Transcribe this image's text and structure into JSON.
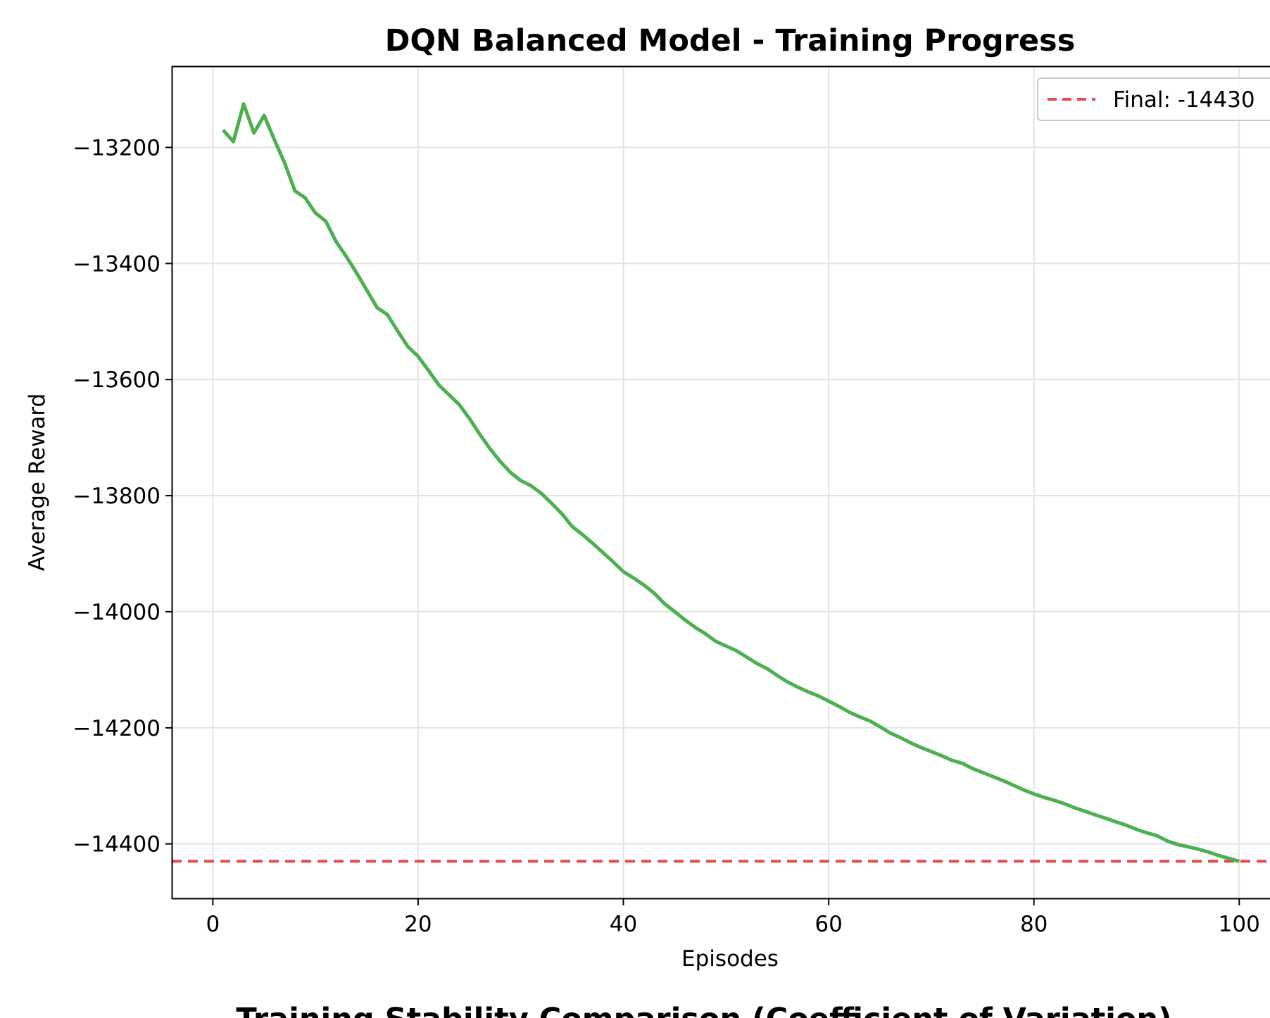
{
  "chart_data": {
    "type": "line",
    "title": "DQN Balanced Model - Training Progress",
    "xlabel": "Episodes",
    "ylabel": "Average Reward",
    "xlim": [
      -4,
      103
    ],
    "ylim": [
      -14495,
      -13060
    ],
    "xticks": [
      0,
      20,
      40,
      60,
      80,
      100
    ],
    "yticks": [
      -13200,
      -13400,
      -13600,
      -13800,
      -14000,
      -14200,
      -14400
    ],
    "grid": true,
    "legend": {
      "placement": "top-right",
      "entries": [
        "Final: -14430"
      ]
    },
    "series": [
      {
        "color": "#4caf50",
        "x": [
          1,
          2,
          3,
          4,
          5,
          6,
          7,
          8,
          9,
          10,
          11,
          12,
          13,
          14,
          15,
          16,
          17,
          18,
          19,
          20,
          21,
          22,
          23,
          24,
          25,
          26,
          27,
          28,
          29,
          30,
          31,
          32,
          33,
          34,
          35,
          36,
          37,
          38,
          39,
          40,
          41,
          42,
          43,
          44,
          45,
          46,
          47,
          48,
          49,
          50,
          51,
          52,
          53,
          54,
          55,
          56,
          57,
          58,
          59,
          60,
          61,
          62,
          63,
          64,
          65,
          66,
          67,
          68,
          69,
          70,
          71,
          72,
          73,
          74,
          75,
          76,
          77,
          78,
          79,
          80,
          81,
          82,
          83,
          84,
          85,
          86,
          87,
          88,
          89,
          90,
          91,
          92,
          93,
          94,
          95,
          96,
          97,
          98,
          99,
          100
        ],
        "y": [
          -13170,
          -13190,
          -13125,
          -13175,
          -13145,
          -13187,
          -13227,
          -13275,
          -13287,
          -13313,
          -13327,
          -13362,
          -13388,
          -13416,
          -13446,
          -13476,
          -13488,
          -13516,
          -13543,
          -13560,
          -13584,
          -13609,
          -13626,
          -13643,
          -13667,
          -13694,
          -13719,
          -13741,
          -13760,
          -13774,
          -13783,
          -13796,
          -13813,
          -13831,
          -13853,
          -13867,
          -13882,
          -13898,
          -13914,
          -13931,
          -13942,
          -13954,
          -13968,
          -13986,
          -14000,
          -14014,
          -14027,
          -14038,
          -14051,
          -14059,
          -14067,
          -14078,
          -14089,
          -14098,
          -14110,
          -14121,
          -14130,
          -14138,
          -14145,
          -14154,
          -14163,
          -14173,
          -14181,
          -14188,
          -14198,
          -14209,
          -14217,
          -14226,
          -14234,
          -14241,
          -14248,
          -14256,
          -14261,
          -14270,
          -14277,
          -14284,
          -14291,
          -14299,
          -14307,
          -14314,
          -14320,
          -14325,
          -14331,
          -14338,
          -14344,
          -14350,
          -14356,
          -14362,
          -14368,
          -14375,
          -14381,
          -14386,
          -14395,
          -14401,
          -14405,
          -14409,
          -14414,
          -14420,
          -14425,
          -14430
        ]
      }
    ],
    "reference_line": {
      "y": -14430,
      "color": "#e84a4a",
      "style": "dashed",
      "label": "Final: -14430"
    }
  },
  "footer_title": "Training Stability Comparison (Coefficient of Variation)"
}
